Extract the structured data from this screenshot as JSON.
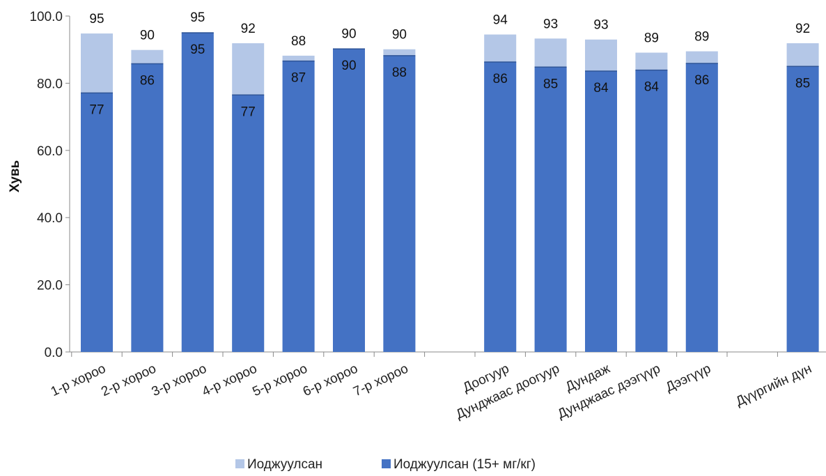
{
  "chart_data": {
    "type": "bar",
    "stacked": "overlay",
    "ylabel": "Хувь",
    "ylim": [
      0,
      100
    ],
    "yticks": [
      "0.0",
      "20.0",
      "40.0",
      "60.0",
      "80.0",
      "100.0"
    ],
    "grid": false,
    "legend_position": "bottom",
    "categories": [
      "1-р хороо",
      "2-р хороо",
      "3-р хороо",
      "4-р хороо",
      "5-р хороо",
      "6-р хороо",
      "7-р хороо",
      "",
      "Доогуур",
      "Дунджаас доогуур",
      "Дундаж",
      "Дунджаас дээгүүр",
      "Дээгүүр",
      "",
      "Дүүргийн дүн"
    ],
    "series": [
      {
        "name": "Иоджуулсан",
        "color": "#b4c7e7",
        "values": [
          95,
          90,
          95,
          92,
          88,
          90,
          90,
          null,
          94,
          93,
          93,
          89,
          89,
          null,
          92
        ]
      },
      {
        "name": "Иоджуулсан (15+ мг/кг)",
        "color": "#4472c4",
        "values": [
          77,
          86,
          95,
          77,
          87,
          90,
          88,
          null,
          86,
          85,
          84,
          84,
          86,
          null,
          85
        ]
      }
    ],
    "plotted_values": {
      "light": [
        94.8,
        89.9,
        95.2,
        91.9,
        88.2,
        90.4,
        90.1,
        null,
        94.5,
        93.3,
        93.0,
        89.1,
        89.5,
        null,
        91.9
      ],
      "dark": [
        77.1,
        85.8,
        95.0,
        76.5,
        86.6,
        90.2,
        88.2,
        null,
        86.3,
        84.8,
        83.6,
        83.9,
        85.9,
        null,
        85.0
      ]
    }
  }
}
